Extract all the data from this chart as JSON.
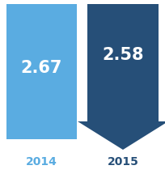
{
  "value_2014": "2.67",
  "value_2015": "2.58",
  "label_2014": "2014",
  "label_2015": "2015",
  "color_2014": "#5aace1",
  "color_2015": "#264f78",
  "text_color": "#ffffff",
  "label_color_2014": "#5aace1",
  "label_color_2015": "#264f78",
  "bg_color": "#ffffff",
  "fig_width": 2.04,
  "fig_height": 2.15
}
